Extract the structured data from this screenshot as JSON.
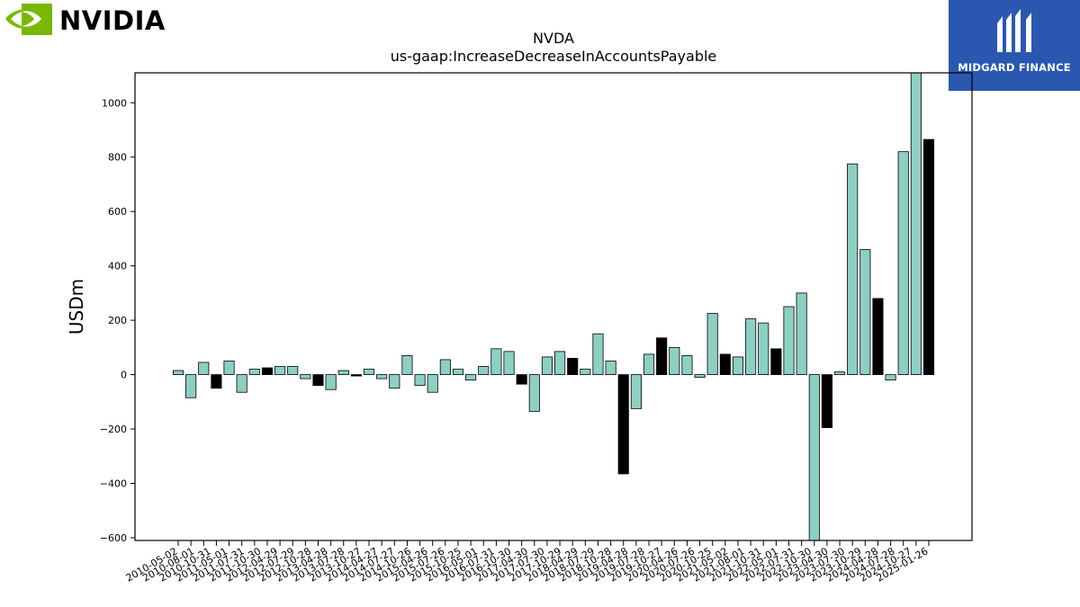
{
  "logos": {
    "nvidia": {
      "text": "NVIDIA",
      "color": "#76b900"
    },
    "midgard": {
      "text": "MIDGARD FINANCE",
      "color": "#2a58b0"
    }
  },
  "chart_data": {
    "type": "bar",
    "title": "NVDA",
    "subtitle": "us-gaap:IncreaseDecreaseInAccountsPayable",
    "xlabel": "",
    "ylabel": "USDm",
    "ylim": [
      -610,
      1110
    ],
    "yticks": [
      -600,
      -400,
      -200,
      0,
      200,
      400,
      600,
      800,
      1000
    ],
    "ytick_labels": [
      "−600",
      "−400",
      "−200",
      "0",
      "200",
      "400",
      "600",
      "800",
      "1000"
    ],
    "grid": false,
    "colors": {
      "quarter": "#8ecfc3",
      "fiscal_year": "#000000"
    },
    "x_tick_labels": [
      "2010-05-02",
      "2010-08-01",
      "2010-10-31",
      "2011-05-01",
      "2011-07-31",
      "2011-10-30",
      "2012-04-29",
      "2012-07-29",
      "2012-10-28",
      "2013-04-28",
      "2013-07-28",
      "2013-10-27",
      "2014-04-27",
      "2014-07-27",
      "2014-10-26",
      "2015-04-26",
      "2015-07-26",
      "2015-10-25",
      "2016-05-01",
      "2016-07-31",
      "2016-10-30",
      "2017-04-30",
      "2017-07-30",
      "2017-10-29",
      "2018-04-29",
      "2018-07-29",
      "2018-10-28",
      "2019-04-28",
      "2019-07-28",
      "2019-10-27",
      "2020-04-26",
      "2020-07-26",
      "2020-10-25",
      "2021-05-02",
      "2021-08-01",
      "2021-10-31",
      "2022-05-01",
      "2022-07-31",
      "2022-10-30",
      "2023-04-30",
      "2023-07-30",
      "2023-10-29",
      "2024-04-28",
      "2024-07-28",
      "2024-10-27",
      "2025-01-26"
    ],
    "values": [
      15,
      -85,
      45,
      -50,
      50,
      -65,
      20,
      25,
      30,
      30,
      -15,
      -40,
      -55,
      15,
      -5,
      20,
      -15,
      -50,
      70,
      -40,
      -65,
      55,
      20,
      -20,
      30,
      95,
      85,
      -35,
      -135,
      65,
      85,
      60,
      20,
      150,
      50,
      -365,
      -125,
      75,
      135,
      100,
      70,
      -10,
      225,
      75,
      65,
      205,
      190,
      95,
      250,
      300,
      -615,
      -195,
      10,
      775,
      460,
      280,
      -20,
      820,
      1115,
      865
    ],
    "annual": [
      false,
      false,
      false,
      true,
      false,
      false,
      false,
      true,
      false,
      false,
      false,
      true,
      false,
      false,
      true,
      false,
      false,
      false,
      false,
      false,
      false,
      false,
      false,
      false,
      false,
      false,
      false,
      true,
      false,
      false,
      false,
      true,
      false,
      false,
      false,
      true,
      false,
      false,
      true,
      false,
      false,
      false,
      false,
      true,
      false,
      false,
      false,
      true,
      false,
      false,
      false,
      true,
      false,
      false,
      false,
      true,
      false,
      false,
      false,
      true
    ]
  }
}
